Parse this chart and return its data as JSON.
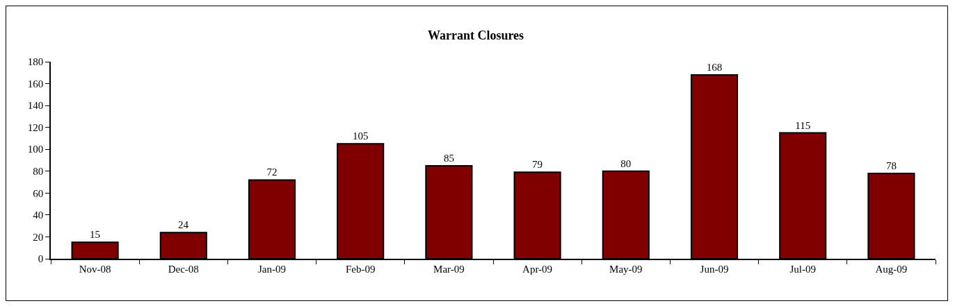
{
  "chart_data": {
    "type": "bar",
    "title": "Warrant Closures",
    "categories": [
      "Nov-08",
      "Dec-08",
      "Jan-09",
      "Feb-09",
      "Mar-09",
      "Apr-09",
      "May-09",
      "Jun-09",
      "Jul-09",
      "Aug-09"
    ],
    "values": [
      15,
      24,
      72,
      105,
      85,
      79,
      80,
      168,
      115,
      78
    ],
    "color": "#800000",
    "ylim": [
      0,
      180
    ],
    "yticks": [
      0,
      20,
      40,
      60,
      80,
      100,
      120,
      140,
      160,
      180
    ],
    "data_labels": true
  }
}
